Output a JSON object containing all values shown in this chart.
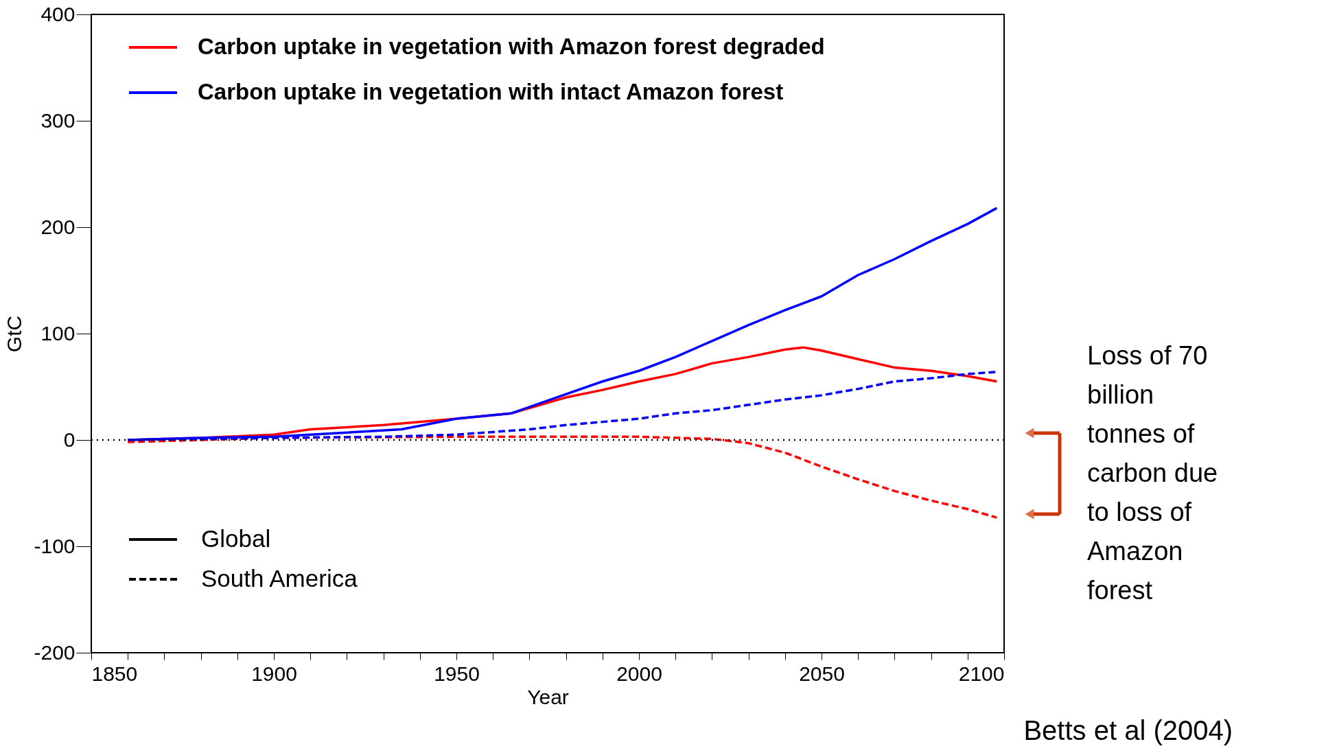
{
  "chart_data": {
    "type": "line",
    "xlabel": "Year",
    "ylabel": "GtC",
    "xlim": [
      1850,
      2100
    ],
    "ylim": [
      -200,
      400
    ],
    "xticks": [
      1850,
      {
        "value": 1860,
        "label": null
      },
      {
        "value": 1870,
        "label": null
      },
      {
        "value": 1880,
        "label": null
      },
      {
        "value": 1890,
        "label": null
      },
      1900,
      {
        "value": 1910,
        "label": null
      },
      {
        "value": 1920,
        "label": null
      },
      {
        "value": 1930,
        "label": null
      },
      {
        "value": 1940,
        "label": null
      },
      1950,
      {
        "value": 1960,
        "label": null
      },
      {
        "value": 1970,
        "label": null
      },
      {
        "value": 1980,
        "label": null
      },
      {
        "value": 1990,
        "label": null
      },
      2000,
      {
        "value": 2010,
        "label": null
      },
      {
        "value": 2020,
        "label": null
      },
      {
        "value": 2030,
        "label": null
      },
      {
        "value": 2040,
        "label": null
      },
      2050,
      {
        "value": 2060,
        "label": null
      },
      {
        "value": 2070,
        "label": null
      },
      {
        "value": 2080,
        "label": null
      },
      {
        "value": 2090,
        "label": null
      },
      2100
    ],
    "yticks": [
      -200,
      -100,
      0,
      100,
      200,
      300,
      400
    ],
    "grid": false,
    "legend": "top left",
    "marker": "none",
    "series": [
      {
        "name": "Carbon uptake in vegetation with Amazon forest degraded",
        "color": "#ff0000",
        "line_style": "solid",
        "x": [
          1860,
          1880,
          1900,
          1910,
          1930,
          1950,
          1965,
          1970,
          1980,
          1990,
          2000,
          2010,
          2020,
          2030,
          2040,
          2045,
          2050,
          2060,
          2070,
          2080,
          2090,
          2098
        ],
        "values": [
          0,
          2,
          5,
          10,
          14,
          20,
          25,
          30,
          40,
          47,
          55,
          62,
          72,
          78,
          85,
          87,
          84,
          76,
          68,
          65,
          60,
          55
        ]
      },
      {
        "name": "Carbon uptake in vegetation with intact Amazon forest",
        "color": "#0000ff",
        "line_style": "solid",
        "x": [
          1860,
          1880,
          1900,
          1920,
          1935,
          1950,
          1965,
          1975,
          1990,
          2000,
          2010,
          2020,
          2030,
          2040,
          2050,
          2060,
          2070,
          2080,
          2090,
          2098
        ],
        "values": [
          0,
          2,
          3,
          7,
          10,
          20,
          25,
          37,
          55,
          65,
          78,
          93,
          108,
          122,
          135,
          155,
          170,
          187,
          203,
          218
        ]
      },
      {
        "color": "#0000ff",
        "line_style": "dashed",
        "x": [
          1860,
          1900,
          1930,
          1950,
          1970,
          1980,
          2000,
          2010,
          2020,
          2030,
          2040,
          2050,
          2060,
          2070,
          2080,
          2090,
          2098
        ],
        "values": [
          0,
          2,
          3,
          5,
          10,
          14,
          20,
          25,
          28,
          33,
          38,
          42,
          48,
          55,
          58,
          62,
          64
        ]
      },
      {
        "color": "#ff0000",
        "line_style": "dashed",
        "x": [
          1860,
          1900,
          1950,
          1980,
          2000,
          2020,
          2030,
          2040,
          2050,
          2060,
          2070,
          2080,
          2090,
          2098
        ],
        "values": [
          -2,
          2,
          3,
          3,
          3,
          1,
          -3,
          -12,
          -25,
          -37,
          -48,
          -57,
          -65,
          -73
        ]
      }
    ],
    "ref_lines": [
      {
        "axis": "y",
        "value": 0,
        "color": "#000000",
        "line_style": "dotted"
      }
    ],
    "annotations": [
      "Global",
      "South America",
      "Loss of 70 billion tonnes of carbon due to loss of Amazon forest",
      "Betts et al (2004)"
    ]
  }
}
